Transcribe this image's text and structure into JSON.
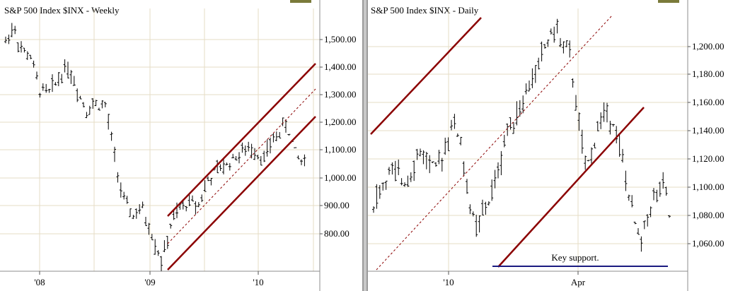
{
  "chart_data": [
    {
      "type": "bar",
      "subtype": "ohlc",
      "title": "S&P 500 Index  $INX - Weekly",
      "x_tick_labels": [
        "'08",
        "'09",
        "'10"
      ],
      "y_tick_labels": [
        "1,500.00",
        "1,400.00",
        "1,300.00",
        "1,200.00",
        "1,100.00",
        "1,000.00",
        "900.00",
        "800.00"
      ],
      "ylim": [
        680,
        1600
      ],
      "grid": true,
      "series": [
        {
          "x": [
            2007.78,
            2007.85,
            2007.92,
            2008.0,
            2008.08,
            2008.17,
            2008.25,
            2008.33,
            2008.42,
            2008.5,
            2008.58,
            2008.67,
            2008.75,
            2008.83,
            2008.92,
            2009.0,
            2009.08,
            2009.17,
            2009.21,
            2009.25,
            2009.33,
            2009.42,
            2009.5,
            2009.58,
            2009.67,
            2009.75,
            2009.83,
            2009.92,
            2010.0,
            2010.08,
            2010.17,
            2010.25,
            2010.29,
            2010.33,
            2010.38,
            2010.42,
            2010.46
          ],
          "y": [
            1500,
            1560,
            1470,
            1450,
            1330,
            1320,
            1370,
            1420,
            1330,
            1260,
            1280,
            1270,
            1100,
            930,
            880,
            900,
            820,
            720,
            760,
            840,
            900,
            930,
            920,
            1000,
            1040,
            1060,
            1090,
            1110,
            1120,
            1080,
            1150,
            1190,
            1210,
            1150,
            1090,
            1080,
            1070
          ]
        }
      ],
      "channel_lines": [
        {
          "name": "upper",
          "y_start": 860,
          "y_end": 1420
        },
        {
          "name": "lower",
          "y_start": 680,
          "y_end": 1210
        },
        {
          "name": "mid",
          "y_start": 770,
          "y_end": 1310
        }
      ]
    },
    {
      "type": "bar",
      "subtype": "ohlc",
      "title": "S&P 500 Index  $INX - Daily",
      "x_tick_labels": [
        "'10",
        "Apr"
      ],
      "y_tick_labels": [
        "1,200.00",
        "1,180.00",
        "1,160.00",
        "1,140.00",
        "1,120.00",
        "1,100.00",
        "1,080.00",
        "1,060.00"
      ],
      "ylim": [
        1042,
        1220
      ],
      "grid": true,
      "series": [
        {
          "x": [
            0,
            10,
            20,
            30,
            40,
            50,
            55,
            60,
            65,
            75,
            80,
            85,
            95,
            105,
            110,
            115,
            125,
            135,
            145,
            152,
            158,
            165,
            170,
            175,
            180,
            185,
            190
          ],
          "y": [
            1090,
            1110,
            1105,
            1125,
            1110,
            1145,
            1135,
            1095,
            1070,
            1095,
            1115,
            1140,
            1160,
            1185,
            1200,
            1210,
            1190,
            1110,
            1150,
            1150,
            1120,
            1080,
            1060,
            1085,
            1095,
            1100,
            1070
          ]
        }
      ],
      "annotations": [
        {
          "text": "Key support.",
          "value": 1045
        }
      ],
      "support_line": {
        "y": 1045,
        "color": "#1a1a80"
      },
      "channel_lines": [
        {
          "name": "red-upper",
          "color": "#8b0000"
        },
        {
          "name": "red-lower",
          "color": "#8b0000"
        }
      ]
    }
  ]
}
